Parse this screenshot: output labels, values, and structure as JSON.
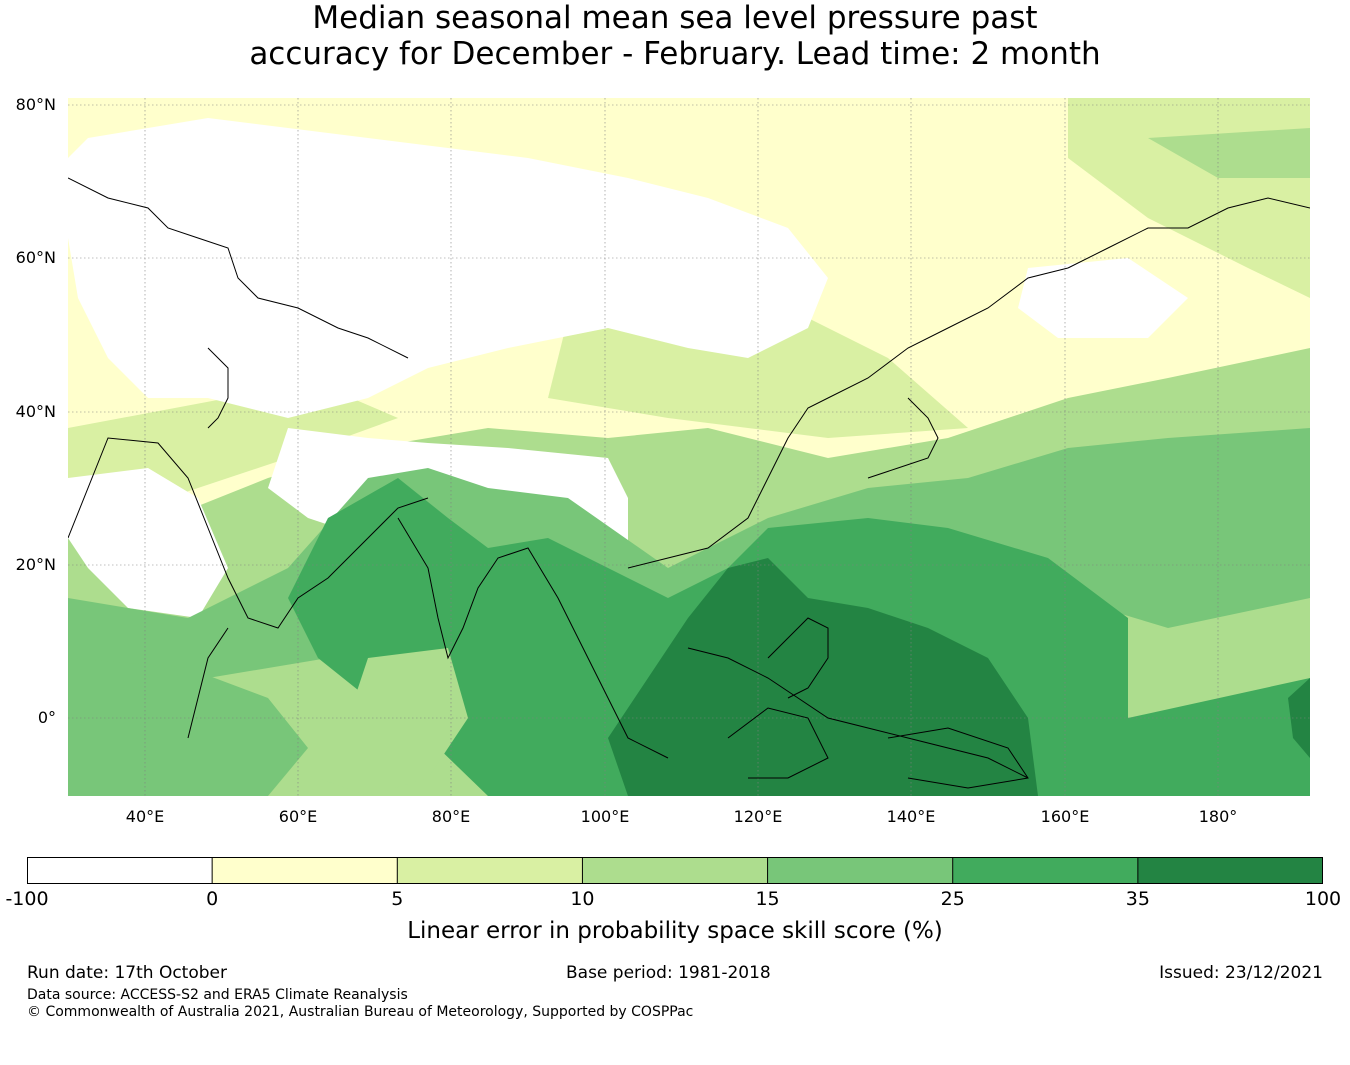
{
  "title_line1": "Median seasonal mean sea level pressure past",
  "title_line2": "accuracy for December - February. Lead time: 2 month",
  "map": {
    "lon_range": [
      30,
      192
    ],
    "lat_range": [
      -10,
      81
    ],
    "lat_labels": [
      "80°N",
      "60°N",
      "40°N",
      "20°N",
      "0°"
    ],
    "lon_labels": [
      "40°E",
      "60°E",
      "80°E",
      "100°E",
      "120°E",
      "140°E",
      "160°E",
      "180°"
    ]
  },
  "colorbar": {
    "bounds": [
      "-100",
      "0",
      "5",
      "10",
      "15",
      "25",
      "35",
      "100"
    ],
    "colors": [
      "#ffffff",
      "#ffffcc",
      "#d9f0a3",
      "#addd8e",
      "#78c679",
      "#41ab5d",
      "#238443"
    ],
    "label": "Linear error in probability space skill score (%)"
  },
  "footer": {
    "run_date": "Run date: 17th October",
    "base_period": "Base period: 1981-2018",
    "issued": "Issued: 23/12/2021",
    "data_source": "Data source: ACCESS-S2 and ERA5 Climate Reanalysis",
    "copyright": "© Commonwealth of Australia 2021, Australian Bureau of Meteorology, Supported by COSPPac"
  }
}
